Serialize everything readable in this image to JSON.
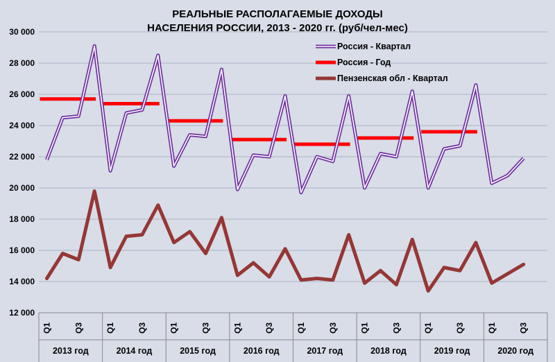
{
  "chart_data": {
    "type": "line",
    "title": "РЕАЛЬНЫЕ РАСПОЛАГАЕМЫЕ ДОХОДЫ",
    "subtitle": "НАСЕЛЕНИЯ РОССИИ, 2013 - 2020 гг. (руб/чел-мес)",
    "ylim": [
      12000,
      30000
    ],
    "yticks": [
      12000,
      14000,
      16000,
      18000,
      20000,
      22000,
      24000,
      26000,
      28000,
      30000
    ],
    "ytick_labels": [
      "12 000",
      "14 000",
      "16 000",
      "18 000",
      "20 000",
      "22 000",
      "24 000",
      "26 000",
      "28 000",
      "30 000"
    ],
    "quarter_labels": [
      "Q1",
      "Q3",
      "Q1",
      "Q3",
      "Q1",
      "Q3",
      "Q1",
      "Q3",
      "Q1",
      "Q3",
      "Q1",
      "Q3",
      "Q1",
      "Q3",
      "Q1",
      "Q3"
    ],
    "quarter_label_positions": [
      1,
      3,
      1,
      3,
      1,
      3,
      1,
      3,
      1,
      3,
      1,
      3,
      1,
      3,
      1,
      3
    ],
    "year_labels": [
      "2013 год",
      "2014 год",
      "2015 год",
      "2016 год",
      "2017 год",
      "2018 год",
      "2019 год",
      "2020 год"
    ],
    "grid": true,
    "legend_position": "top-right",
    "colors": {
      "background": "#d8dde7",
      "grid": "#aab3c4",
      "russia_quarter": "#7030a0",
      "russia_year": "#ff0000",
      "penza_quarter": "#953735"
    },
    "series": [
      {
        "name": "Россия - Квартал",
        "values": [
          21800,
          24500,
          24600,
          29100,
          21100,
          24800,
          25000,
          28500,
          21400,
          23400,
          23300,
          27600,
          19900,
          22100,
          22000,
          25900,
          19700,
          22000,
          21700,
          25900,
          20000,
          22200,
          22000,
          26200,
          20000,
          22500,
          22700,
          26600,
          20300,
          20800,
          21900
        ]
      },
      {
        "name": "Россия - Год",
        "values": [
          25700,
          25400,
          24300,
          23100,
          22800,
          23200,
          23600
        ]
      },
      {
        "name": "Пензенская обл - Квартал",
        "values": [
          14200,
          15800,
          15400,
          19800,
          14900,
          16900,
          17000,
          18900,
          16500,
          17200,
          15800,
          18100,
          14400,
          15200,
          14300,
          16100,
          14100,
          14200,
          14100,
          17000,
          13900,
          14700,
          13800,
          16700,
          13400,
          14900,
          14700,
          16500,
          13900,
          14500,
          15100
        ]
      }
    ]
  }
}
